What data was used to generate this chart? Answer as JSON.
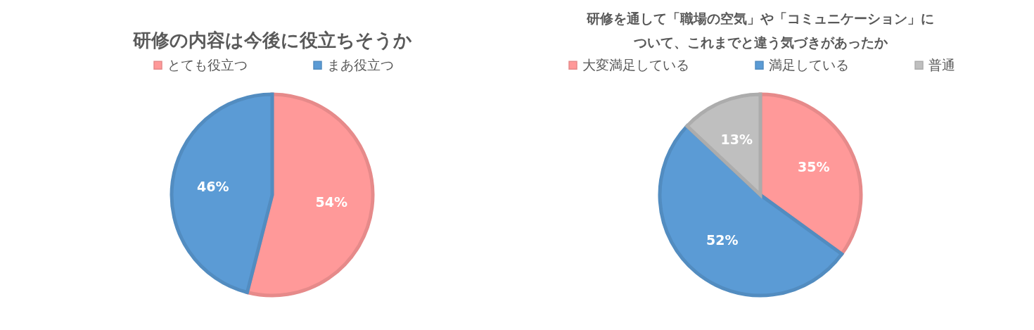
{
  "chart_data": [
    {
      "type": "pie",
      "title": "研修の内容は今後に役立ちそうか",
      "categories": [
        "とても役立つ",
        "まあ役立つ"
      ],
      "values": [
        54,
        46
      ],
      "colors": [
        "#ff9999",
        "#5b9bd5"
      ],
      "value_labels": [
        "54%",
        "46%"
      ],
      "legend": "top"
    },
    {
      "type": "pie",
      "title": "研修を通して「職場の空気」や「コミュニケーション」について、これまでと違う気づきがあったか",
      "categories": [
        "大変満足している",
        "満足している",
        "普通"
      ],
      "values": [
        35,
        52,
        13
      ],
      "colors": [
        "#ff9999",
        "#5b9bd5",
        "#bfbfbf"
      ],
      "value_labels": [
        "35%",
        "52%",
        "13%"
      ],
      "legend": "top"
    }
  ]
}
